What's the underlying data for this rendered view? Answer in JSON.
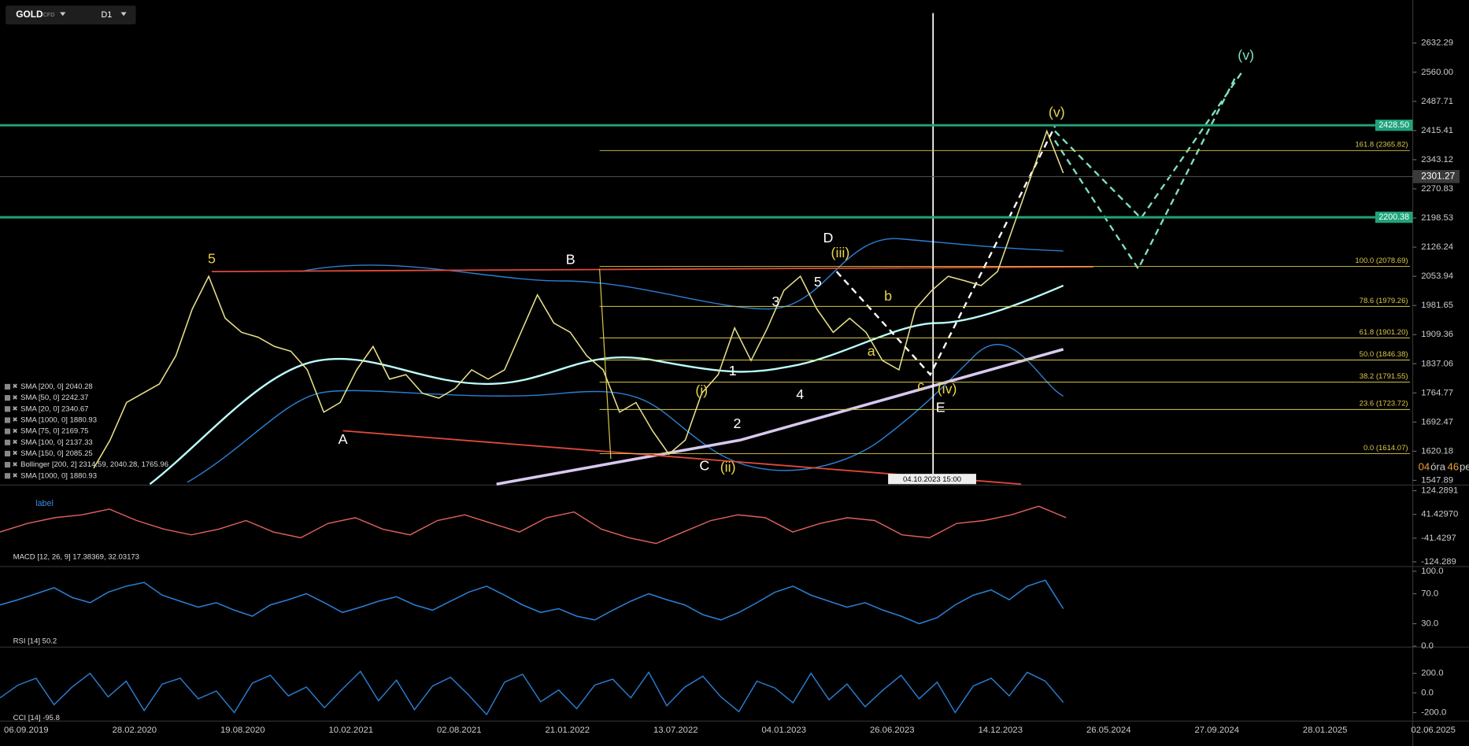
{
  "toolbar": {
    "symbol": "GOLD",
    "symbol_type": "CFD",
    "timeframe": "D1"
  },
  "main_panel": {
    "ylim": [
      1538.6,
      2739.1
    ],
    "yticks": [
      2632.29,
      {
        "value": 2560,
        "label": "2560.00"
      },
      2487.71,
      2415.41,
      2343.12,
      2270.83,
      2198.53,
      2126.24,
      2053.94,
      1981.65,
      1909.36,
      1837.06,
      1764.77,
      1692.47,
      1620.18,
      1547.89
    ],
    "price_series": [
      1578,
      1648,
      1741,
      1764,
      1787,
      1857,
      1973,
      2054,
      1950,
      1915,
      1903,
      1880,
      1868,
      1822,
      1717,
      1741,
      1822,
      1880,
      1799,
      1810,
      1764,
      1752,
      1776,
      1822,
      1799,
      1822,
      1915,
      2008,
      1938,
      1915,
      1857,
      1822,
      1717,
      1741,
      1671,
      1613,
      1648,
      1764,
      1810,
      1926,
      1845,
      1926,
      2019,
      2054,
      1973,
      1915,
      1950,
      1915,
      1845,
      1822,
      1973,
      2019,
      2054,
      2043,
      2031,
      2066,
      2182,
      2298,
      2414,
      2310
    ],
    "level_tags": [
      {
        "value": 2428.5,
        "label": "2428.50"
      },
      2200.38
    ],
    "current_price": 2301.27,
    "fib_levels": [
      {
        "price": 2365.82,
        "label": "161.8 (2365.82)"
      },
      {
        "price": 2078.69,
        "label": "100.0 (2078.69)"
      },
      {
        "price": 1979.26,
        "label": "78.6 (1979.26)"
      },
      {
        "price": 1901.2,
        "label": "61.8 (1901.20)"
      },
      {
        "price": 1846.38,
        "label": "50.0 (1846.38)"
      },
      {
        "price": 1791.55,
        "label": "38.2 (1791.55)"
      },
      {
        "price": 1723.72,
        "label": "23.6 (1723.72)"
      },
      {
        "price": 1614.07,
        "label": "0.0 (1614.07)"
      }
    ],
    "annotations": [
      "5",
      "A",
      "B",
      "C",
      "(ii)",
      "(i)",
      "1",
      "2",
      "3",
      "4",
      "5",
      "D",
      "(iii)",
      "a",
      "b",
      "c",
      "(iv)",
      "E",
      "(v)",
      "(v)"
    ],
    "indicator_legend": [
      "SMA [200, 0] 2040.28",
      "SMA [50, 0] 2242.37",
      "SMA [20, 0] 2340.67",
      "SMA [1000, 0] 1880.93",
      "SMA [75, 0] 2169.75",
      "SMA [100, 0] 2137.33",
      "SMA [150, 0] 2085.25",
      "Bollinger [200, 2] 2314.59, 2040.28, 1765.96",
      "SMA [1000, 0] 1880.93"
    ],
    "cursor_date": "04.10.2023 15:00",
    "countdown": {
      "hours": "04",
      "hours_unit": "óra",
      "minutes": "46",
      "minutes_unit": "perc"
    }
  },
  "macd_panel": {
    "label": "label",
    "legend": "MACD [12, 26, 9] 17.38369, 32.03173",
    "ylim": [
      -137.4,
      137.4
    ],
    "yticks": [
      124.2891,
      {
        "value": 41.4297,
        "label": "41.42970"
      },
      -41.4297,
      -124.289
    ],
    "values": [
      -20,
      10,
      30,
      40,
      60,
      20,
      -10,
      -30,
      -10,
      20,
      -20,
      -40,
      10,
      30,
      -10,
      -30,
      20,
      40,
      10,
      -20,
      30,
      50,
      -10,
      -40,
      -60,
      -20,
      20,
      40,
      30,
      -20,
      10,
      30,
      20,
      -30,
      -40,
      10,
      20,
      40,
      70,
      30
    ]
  },
  "rsi_panel": {
    "legend": "RSI [14] 50.2",
    "ylim": [
      0,
      105
    ],
    "yticks": [
      {
        "value": 100,
        "label": "100.0"
      },
      {
        "value": 70,
        "label": "70.0"
      },
      {
        "value": 30,
        "label": "30.0"
      },
      {
        "value": 0,
        "label": "0.0"
      }
    ],
    "values": [
      55,
      62,
      70,
      78,
      65,
      58,
      72,
      80,
      85,
      68,
      60,
      52,
      58,
      48,
      40,
      55,
      62,
      70,
      58,
      45,
      52,
      60,
      66,
      55,
      48,
      60,
      72,
      80,
      68,
      55,
      45,
      50,
      40,
      35,
      48,
      60,
      70,
      62,
      55,
      42,
      35,
      45,
      58,
      72,
      80,
      68,
      60,
      52,
      58,
      48,
      40,
      30,
      38,
      55,
      68,
      75,
      62,
      80,
      88,
      50
    ]
  },
  "cci_panel": {
    "legend": "CCI [14] -95.8",
    "ylim": [
      -286,
      457
    ],
    "yticks": [
      {
        "value": 200,
        "label": "200.0"
      },
      {
        "value": 0,
        "label": "0.0"
      },
      {
        "value": -200,
        "label": "-200.0"
      }
    ],
    "values": [
      -50,
      80,
      150,
      -120,
      60,
      200,
      -40,
      120,
      -180,
      90,
      150,
      -60,
      20,
      -200,
      100,
      180,
      -30,
      60,
      -150,
      40,
      220,
      -80,
      130,
      -170,
      70,
      160,
      -20,
      -220,
      110,
      190,
      -90,
      30,
      -160,
      80,
      140,
      -50,
      210,
      -130,
      60,
      170,
      -40,
      -190,
      120,
      50,
      -100,
      200,
      -70,
      90,
      -140,
      30,
      180,
      -60,
      110,
      -200,
      70,
      150,
      -30,
      210,
      120,
      -96
    ]
  },
  "date_axis": [
    "06.09.2019",
    "28.02.2020",
    "19.08.2020",
    "10.02.2021",
    "02.08.2021",
    "21.01.2022",
    "13.07.2022",
    "04.01.2023",
    "26.06.2023",
    "14.12.2023",
    "26.05.2024",
    "27.09.2024",
    "28.01.2025",
    "02.06.2025"
  ]
}
